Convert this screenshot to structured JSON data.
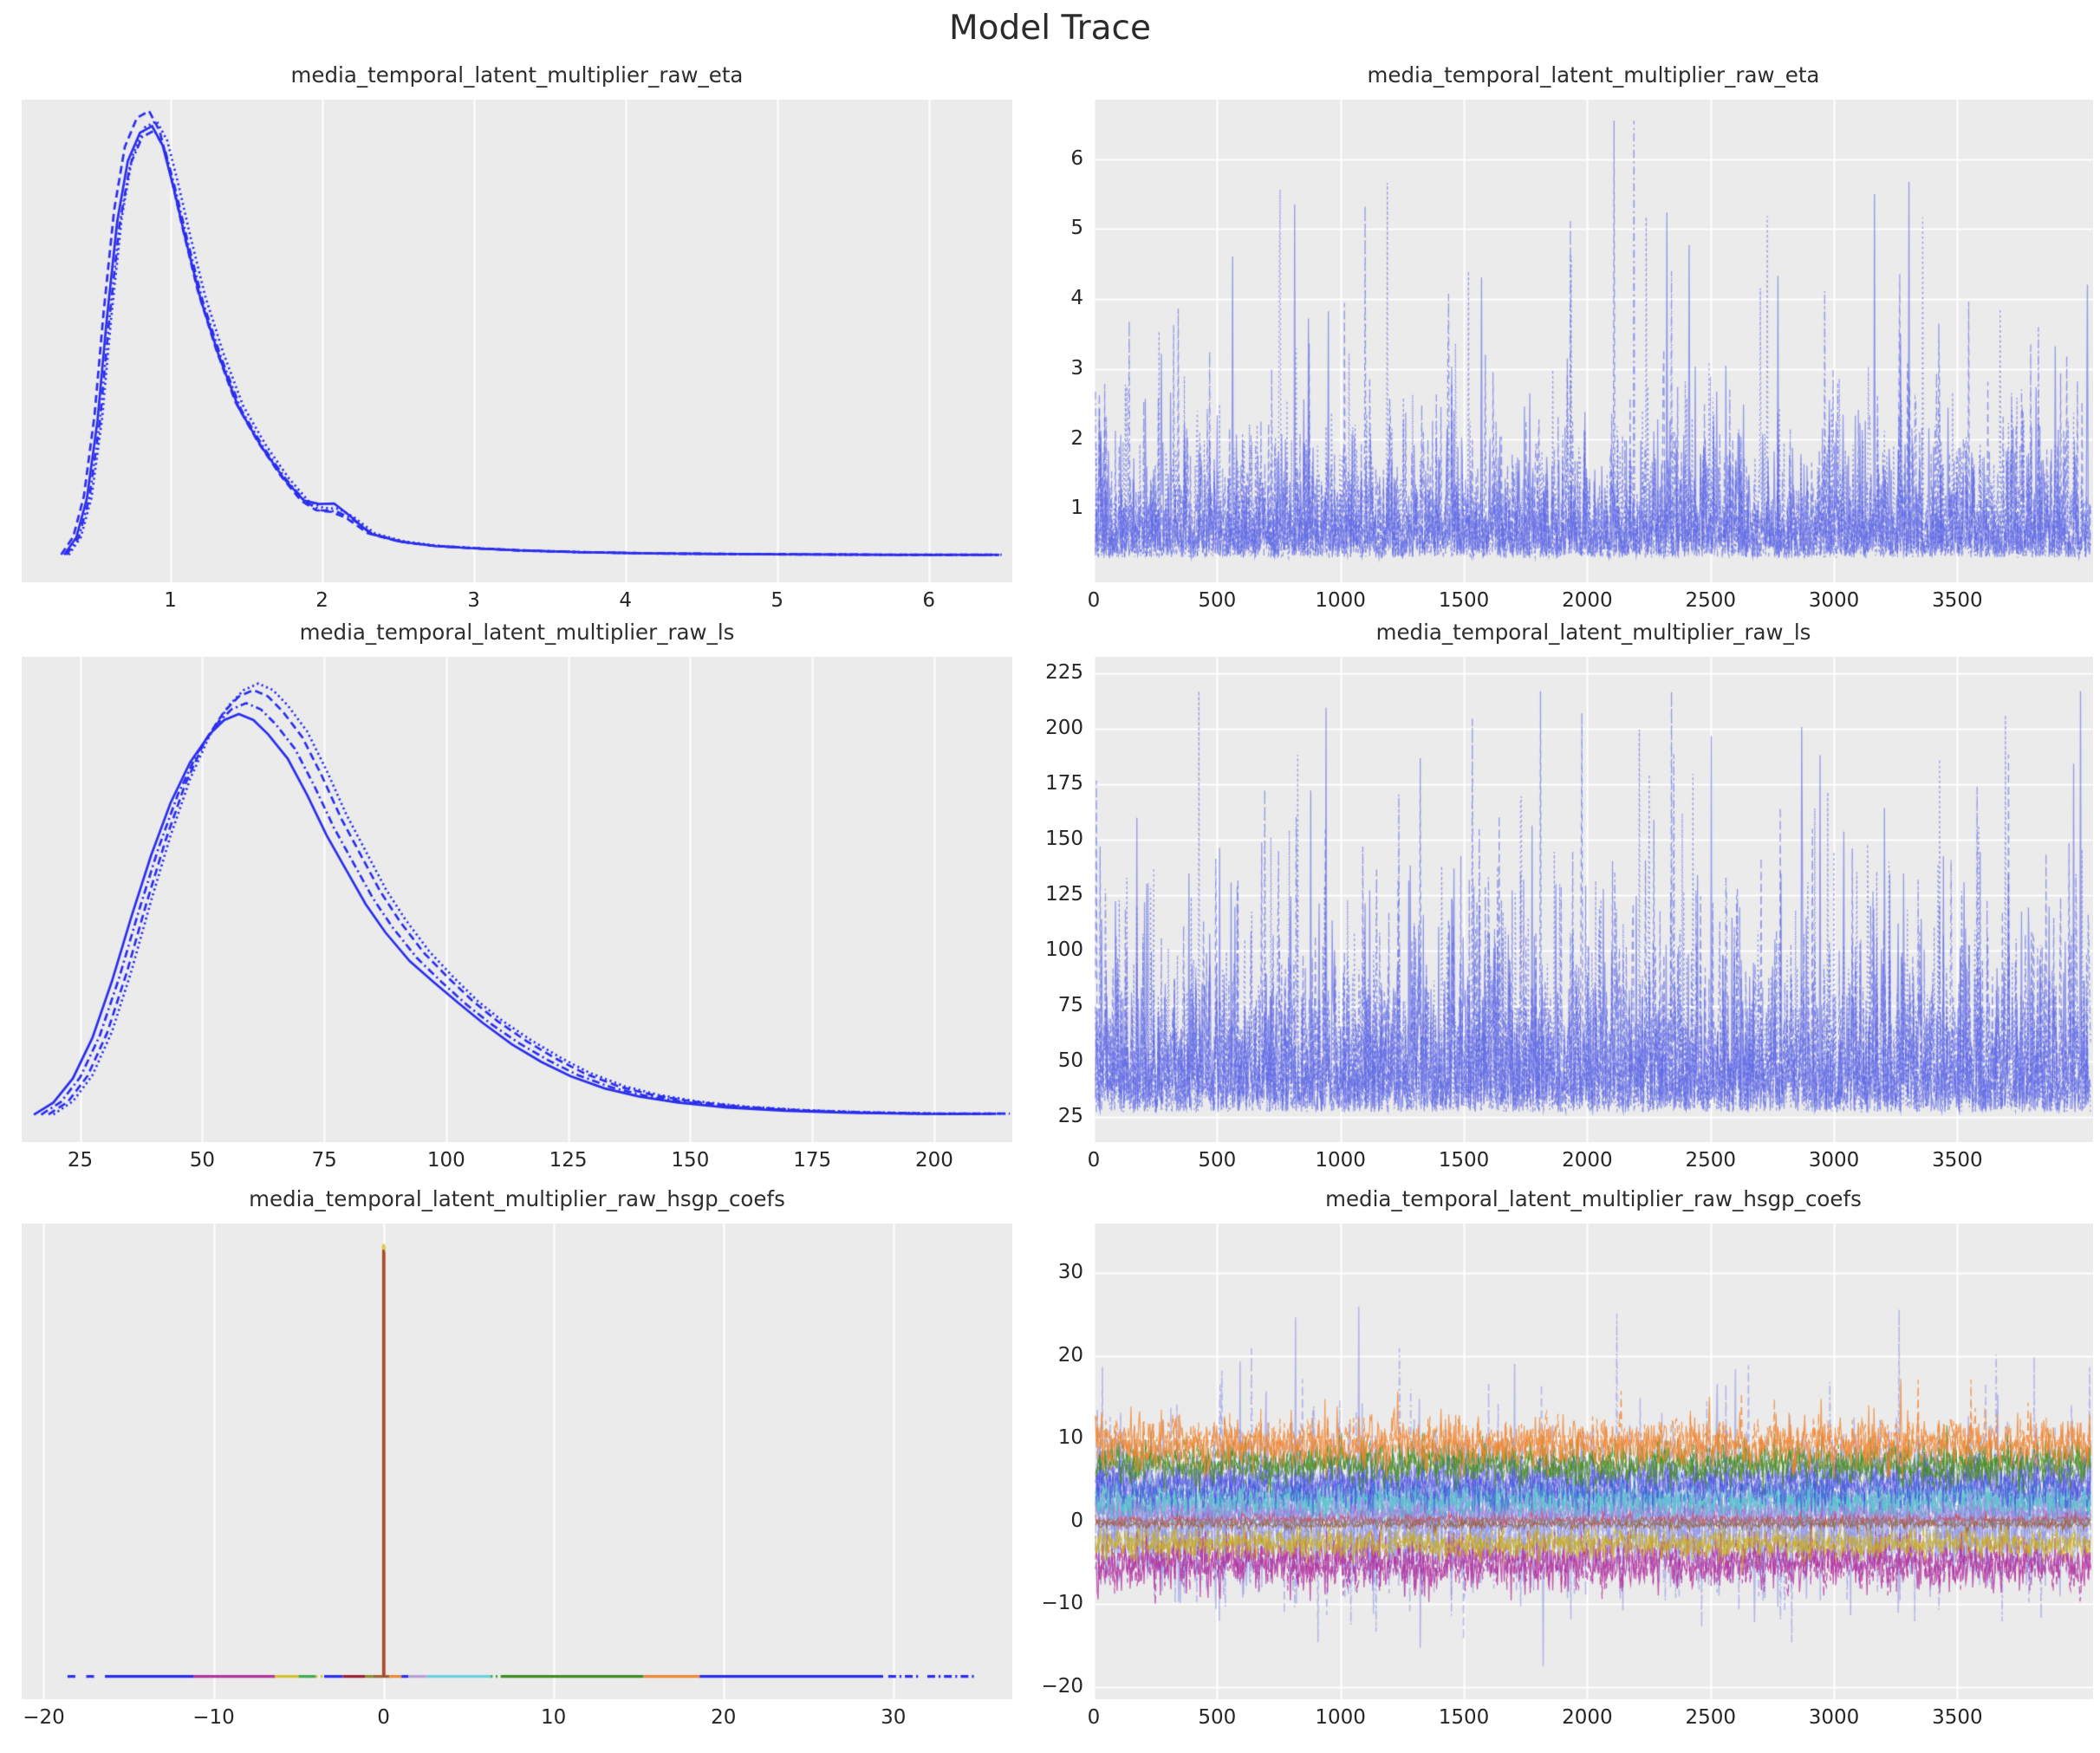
{
  "page": {
    "title": "Model Trace"
  },
  "style": {
    "figure_bg": "#ffffff",
    "axes_bg": "#ebebeb",
    "grid_color": "#ffffff",
    "tick_color": "#262626",
    "title_color": "#2d2d2d",
    "chain_color": "#2a2eec",
    "trace_blue": "#5a64e6"
  },
  "chart_data": [
    {
      "id": "eta-kde",
      "row": 0,
      "col": 0,
      "type": "kde",
      "title": "media_temporal_latent_multiplier_raw_eta",
      "xlabel": "",
      "ylabel": "density (unlabeled)",
      "grid": "vertical",
      "x_range": [
        0.02,
        6.55
      ],
      "x_ticks": [
        {
          "v": 1,
          "t": "1"
        },
        {
          "v": 2,
          "t": "2"
        },
        {
          "v": 3,
          "t": "3"
        },
        {
          "v": 4,
          "t": "4"
        },
        {
          "v": 5,
          "t": "5"
        },
        {
          "v": 6,
          "t": "6"
        }
      ],
      "chains": 4,
      "line_styles": [
        "solid",
        "dashed",
        "dashdot",
        "dotted"
      ],
      "color": "#2a2eec",
      "peak_multipliers": [
        1.0,
        1.035,
        0.99,
        1.012
      ],
      "x_shifts": [
        0,
        -0.02,
        0.015,
        0.03
      ],
      "bump": {
        "center": 2.05,
        "width": 0.13,
        "amps": [
          0.03,
          0.006,
          0.012,
          0.016
        ]
      },
      "curve": [
        [
          0.3,
          0.01
        ],
        [
          0.38,
          0.05
        ],
        [
          0.45,
          0.14
        ],
        [
          0.52,
          0.32
        ],
        [
          0.58,
          0.55
        ],
        [
          0.65,
          0.78
        ],
        [
          0.72,
          0.92
        ],
        [
          0.8,
          0.985
        ],
        [
          0.88,
          1.0
        ],
        [
          0.95,
          0.955
        ],
        [
          1.02,
          0.86
        ],
        [
          1.1,
          0.74
        ],
        [
          1.2,
          0.6
        ],
        [
          1.32,
          0.47
        ],
        [
          1.45,
          0.35
        ],
        [
          1.6,
          0.26
        ],
        [
          1.75,
          0.185
        ],
        [
          1.88,
          0.13
        ],
        [
          1.98,
          0.105
        ],
        [
          2.08,
          0.1
        ],
        [
          2.18,
          0.09
        ],
        [
          2.32,
          0.058
        ],
        [
          2.52,
          0.04
        ],
        [
          2.75,
          0.03
        ],
        [
          3.0,
          0.025
        ],
        [
          3.3,
          0.02
        ],
        [
          3.7,
          0.016
        ],
        [
          4.2,
          0.013
        ],
        [
          5.0,
          0.011
        ],
        [
          5.8,
          0.01
        ],
        [
          6.45,
          0.01
        ]
      ]
    },
    {
      "id": "eta-trace",
      "row": 0,
      "col": 1,
      "type": "trace",
      "title": "media_temporal_latent_multiplier_raw_eta",
      "grid": "both",
      "x_range": [
        0,
        4050
      ],
      "x_ticks": [
        {
          "v": 0,
          "t": "0"
        },
        {
          "v": 500,
          "t": "500"
        },
        {
          "v": 1000,
          "t": "1000"
        },
        {
          "v": 1500,
          "t": "1500"
        },
        {
          "v": 2000,
          "t": "2000"
        },
        {
          "v": 2500,
          "t": "2500"
        },
        {
          "v": 3000,
          "t": "3000"
        },
        {
          "v": 3500,
          "t": "3500"
        }
      ],
      "y_range": [
        -0.05,
        6.85
      ],
      "y_ticks": [
        {
          "v": 1,
          "t": "1"
        },
        {
          "v": 2,
          "t": "2"
        },
        {
          "v": 3,
          "t": "3"
        },
        {
          "v": 4,
          "t": "4"
        },
        {
          "v": 5,
          "t": "5"
        },
        {
          "v": 6,
          "t": "6"
        }
      ],
      "n_points": 1300,
      "series": [
        {
          "name": "eta",
          "color": "#5a64e6",
          "alpha": 0.6,
          "chains": 4,
          "lw": 1.3,
          "gen": {
            "kind": "expo",
            "base": 0.3,
            "scale": 0.52,
            "spike_p": 0.008,
            "spike_base": 1.2,
            "spike_var": 3.8,
            "clamp": [
              0.16,
              6.55
            ]
          }
        }
      ]
    },
    {
      "id": "ls-kde",
      "row": 1,
      "col": 0,
      "type": "kde",
      "title": "media_temporal_latent_multiplier_raw_ls",
      "xlabel": "",
      "ylabel": "density (unlabeled)",
      "grid": "vertical",
      "x_range": [
        13,
        216
      ],
      "x_ticks": [
        {
          "v": 25,
          "t": "25"
        },
        {
          "v": 50,
          "t": "50"
        },
        {
          "v": 75,
          "t": "75"
        },
        {
          "v": 100,
          "t": "100"
        },
        {
          "v": 125,
          "t": "125"
        },
        {
          "v": 150,
          "t": "150"
        },
        {
          "v": 175,
          "t": "175"
        },
        {
          "v": 200,
          "t": "200"
        }
      ],
      "chains": 4,
      "line_styles": [
        "solid",
        "dashed",
        "dashdot",
        "dotted"
      ],
      "color": "#2a2eec",
      "peak_multipliers": [
        0.93,
        0.985,
        0.955,
        1.0
      ],
      "x_shifts": [
        -2.5,
        0.5,
        -1.0,
        1.5
      ],
      "bump": {
        "center": 105,
        "width": 9,
        "amps": [
          0.015,
          0.004,
          0.006,
          0.0
        ]
      },
      "curve": [
        [
          18,
          0.01
        ],
        [
          22,
          0.04
        ],
        [
          26,
          0.1
        ],
        [
          30,
          0.2
        ],
        [
          34,
          0.34
        ],
        [
          38,
          0.5
        ],
        [
          42,
          0.65
        ],
        [
          46,
          0.78
        ],
        [
          50,
          0.88
        ],
        [
          54,
          0.95
        ],
        [
          57,
          0.985
        ],
        [
          60,
          1.0
        ],
        [
          63,
          0.985
        ],
        [
          66,
          0.95
        ],
        [
          70,
          0.89
        ],
        [
          74,
          0.8
        ],
        [
          78,
          0.7
        ],
        [
          82,
          0.615
        ],
        [
          86,
          0.53
        ],
        [
          90,
          0.46
        ],
        [
          95,
          0.385
        ],
        [
          100,
          0.325
        ],
        [
          105,
          0.27
        ],
        [
          110,
          0.225
        ],
        [
          116,
          0.18
        ],
        [
          122,
          0.14
        ],
        [
          128,
          0.105
        ],
        [
          135,
          0.075
        ],
        [
          142,
          0.055
        ],
        [
          150,
          0.04
        ],
        [
          160,
          0.028
        ],
        [
          172,
          0.02
        ],
        [
          185,
          0.015
        ],
        [
          200,
          0.012
        ],
        [
          214,
          0.012
        ]
      ]
    },
    {
      "id": "ls-trace",
      "row": 1,
      "col": 1,
      "type": "trace",
      "title": "media_temporal_latent_multiplier_raw_ls",
      "grid": "both",
      "x_range": [
        0,
        4050
      ],
      "x_ticks": [
        {
          "v": 0,
          "t": "0"
        },
        {
          "v": 500,
          "t": "500"
        },
        {
          "v": 1000,
          "t": "1000"
        },
        {
          "v": 1500,
          "t": "1500"
        },
        {
          "v": 2000,
          "t": "2000"
        },
        {
          "v": 2500,
          "t": "2500"
        },
        {
          "v": 3000,
          "t": "3000"
        },
        {
          "v": 3500,
          "t": "3500"
        }
      ],
      "y_range": [
        13.5,
        232.5
      ],
      "y_ticks": [
        {
          "v": 25,
          "t": "25"
        },
        {
          "v": 50,
          "t": "50"
        },
        {
          "v": 75,
          "t": "75"
        },
        {
          "v": 100,
          "t": "100"
        },
        {
          "v": 125,
          "t": "125"
        },
        {
          "v": 150,
          "t": "150"
        },
        {
          "v": 175,
          "t": "175"
        },
        {
          "v": 200,
          "t": "200"
        },
        {
          "v": 225,
          "t": "225"
        }
      ],
      "n_points": 1300,
      "series": [
        {
          "name": "ls",
          "color": "#5a64e6",
          "alpha": 0.6,
          "chains": 4,
          "lw": 1.3,
          "gen": {
            "kind": "expo",
            "base": 27,
            "scale": 25,
            "spike_p": 0.005,
            "spike_base": 55,
            "spike_var": 95,
            "clamp": [
              19,
              217
            ]
          }
        }
      ]
    },
    {
      "id": "hsgp-kde",
      "row": 2,
      "col": 0,
      "type": "kde-spike",
      "title": "media_temporal_latent_multiplier_raw_hsgp_coefs",
      "xlabel": "",
      "ylabel": "density (unlabeled)",
      "grid": "vertical",
      "x_range": [
        -21.3,
        37
      ],
      "x_ticks": [
        {
          "v": -20,
          "t": "−20"
        },
        {
          "v": -10,
          "t": "−10"
        },
        {
          "v": 0,
          "t": "0"
        },
        {
          "v": 10,
          "t": "10"
        },
        {
          "v": 20,
          "t": "20"
        },
        {
          "v": 30,
          "t": "30"
        }
      ],
      "spike": {
        "x": 0,
        "height": 0.975,
        "color": "#a0522d",
        "overlay_color": "#c0392b",
        "cap_color": "#e3cf3c"
      },
      "baseline_segments": [
        {
          "from": -18.6,
          "to": -17.9,
          "color": "#2a2eec",
          "dash": "dashed"
        },
        {
          "from": -17.5,
          "to": -16.9,
          "color": "#2a2eec",
          "dash": "dashed"
        },
        {
          "from": -16.4,
          "to": -11.2,
          "color": "#2a2eec",
          "dash": "solid"
        },
        {
          "from": -11.2,
          "to": -6.4,
          "color": "#b1339e",
          "dash": "solid"
        },
        {
          "from": -6.4,
          "to": -5.0,
          "color": "#d4c12f",
          "dash": "solid"
        },
        {
          "from": -5.0,
          "to": -4.0,
          "color": "#3faa4f",
          "dash": "solid"
        },
        {
          "from": -4.0,
          "to": -3.5,
          "color": "#d4c12f",
          "dash": "dotted"
        },
        {
          "from": -3.5,
          "to": -2.4,
          "color": "#2a2eec",
          "dash": "solid"
        },
        {
          "from": -2.4,
          "to": -1.1,
          "color": "#9b1c31",
          "dash": "solid"
        },
        {
          "from": -1.1,
          "to": -0.6,
          "color": "#8a8a2a",
          "dash": "solid"
        },
        {
          "from": -0.6,
          "to": 0.35,
          "color": "#9a5f35",
          "dash": "solid"
        },
        {
          "from": 0.35,
          "to": 1.05,
          "color": "#ef8733",
          "dash": "solid"
        },
        {
          "from": 1.05,
          "to": 1.45,
          "color": "#2a2eec",
          "dash": "solid"
        },
        {
          "from": 1.45,
          "to": 2.55,
          "color": "#b89fd8",
          "dash": "solid"
        },
        {
          "from": 2.55,
          "to": 6.3,
          "color": "#67d2dd",
          "dash": "solid"
        },
        {
          "from": 6.3,
          "to": 6.9,
          "color": "#3faa4f",
          "dash": "dotted"
        },
        {
          "from": 6.9,
          "to": 15.3,
          "color": "#3d8b20",
          "dash": "solid"
        },
        {
          "from": 15.3,
          "to": 18.6,
          "color": "#ef8733",
          "dash": "solid"
        },
        {
          "from": 18.6,
          "to": 29.4,
          "color": "#2a2eec",
          "dash": "solid"
        },
        {
          "from": 29.7,
          "to": 31.6,
          "color": "#2a2eec",
          "dash": "dashdot"
        },
        {
          "from": 32.0,
          "to": 34.8,
          "color": "#2a2eec",
          "dash": "dashdot"
        }
      ]
    },
    {
      "id": "hsgp-trace",
      "row": 2,
      "col": 1,
      "type": "trace",
      "title": "media_temporal_latent_multiplier_raw_hsgp_coefs",
      "grid": "both",
      "x_range": [
        0,
        4050
      ],
      "x_ticks": [
        {
          "v": 0,
          "t": "0"
        },
        {
          "v": 500,
          "t": "500"
        },
        {
          "v": 1000,
          "t": "1000"
        },
        {
          "v": 1500,
          "t": "1500"
        },
        {
          "v": 2000,
          "t": "2000"
        },
        {
          "v": 2500,
          "t": "2500"
        },
        {
          "v": 3000,
          "t": "3000"
        },
        {
          "v": 3500,
          "t": "3500"
        }
      ],
      "y_range": [
        -21.5,
        36
      ],
      "y_ticks": [
        {
          "v": -20,
          "t": "−20"
        },
        {
          "v": -10,
          "t": "−10"
        },
        {
          "v": 0,
          "t": "0"
        },
        {
          "v": 10,
          "t": "10"
        },
        {
          "v": 20,
          "t": "20"
        },
        {
          "v": 30,
          "t": "30"
        }
      ],
      "n_points": 1150,
      "series": [
        {
          "name": "coef-wide",
          "color": "#7b84e8",
          "alpha": 0.5,
          "chains": 3,
          "lw": 1.5,
          "gen": {
            "kind": "gauss",
            "mean": 1.2,
            "sd": 4.6,
            "spike_p": 0.022,
            "spike_base": 4,
            "spike_var": 16,
            "spike_flip": 0.38,
            "clamp": [
              -17.5,
              30.6
            ]
          }
        },
        {
          "name": "coef-magenta",
          "color": "#b12d9e",
          "alpha": 0.75,
          "chains": 2,
          "lw": 1.3,
          "gen": {
            "kind": "gauss",
            "mean": -5.1,
            "sd": 1.6,
            "spike_p": 0.008,
            "spike_base": 1.5,
            "spike_var": 3.5,
            "spike_flip": 0.8,
            "clamp": [
              -11.5,
              -1.2
            ]
          }
        },
        {
          "name": "coef-yellow",
          "color": "#c9ac1e",
          "alpha": 0.75,
          "chains": 2,
          "lw": 1.2,
          "gen": {
            "kind": "gauss",
            "mean": -2.7,
            "sd": 0.9,
            "spike_p": 0.006,
            "spike_base": 1,
            "spike_var": 2,
            "spike_flip": 0.7,
            "clamp": [
              -6.2,
              -0.6
            ]
          }
        },
        {
          "name": "coef-cyan",
          "color": "#52c7ca",
          "alpha": 0.8,
          "chains": 2,
          "lw": 1.2,
          "gen": {
            "kind": "gauss",
            "mean": 2.6,
            "sd": 1.2,
            "spike_p": 0.006,
            "spike_base": 1,
            "spike_var": 2,
            "spike_flip": 0.3,
            "clamp": [
              0.1,
              6.4
            ]
          }
        },
        {
          "name": "coef-blue",
          "color": "#3a42de",
          "alpha": 0.55,
          "chains": 2,
          "lw": 1.3,
          "gen": {
            "kind": "gauss",
            "mean": 4.6,
            "sd": 1.6,
            "spike_p": 0.007,
            "spike_base": 1.5,
            "spike_var": 3,
            "spike_flip": 0.3,
            "clamp": [
              0.6,
              9.2
            ]
          }
        },
        {
          "name": "coef-green",
          "color": "#4a8f1e",
          "alpha": 0.8,
          "chains": 2,
          "lw": 1.2,
          "gen": {
            "kind": "gauss",
            "mean": 7.0,
            "sd": 1.3,
            "spike_p": 0.006,
            "spike_base": 1.5,
            "spike_var": 3,
            "spike_flip": 0.3,
            "clamp": [
              3.4,
              11.6
            ]
          }
        },
        {
          "name": "coef-orange",
          "color": "#f08733",
          "alpha": 0.8,
          "chains": 2,
          "lw": 1.2,
          "gen": {
            "kind": "gauss",
            "mean": 9.4,
            "sd": 1.5,
            "spike_p": 0.009,
            "spike_base": 2,
            "spike_var": 5,
            "spike_flip": 0.2,
            "clamp": [
              5.2,
              17.2
            ]
          }
        },
        {
          "name": "coef-red-zero",
          "color": "#d84242",
          "alpha": 0.85,
          "chains": 1,
          "lw": 1.1,
          "gen": {
            "kind": "gauss",
            "mean": 0.2,
            "sd": 0.32,
            "spike_p": 0,
            "spike_base": 0,
            "spike_var": 0,
            "spike_flip": 0,
            "clamp": [
              -1.2,
              1.6
            ]
          }
        },
        {
          "name": "coef-brown-zero",
          "color": "#9a5f35",
          "alpha": 0.85,
          "chains": 1,
          "lw": 1.1,
          "gen": {
            "kind": "gauss",
            "mean": -0.35,
            "sd": 0.3,
            "spike_p": 0,
            "spike_base": 0,
            "spike_var": 0,
            "spike_flip": 0,
            "clamp": [
              -1.6,
              1.0
            ]
          }
        },
        {
          "name": "coef-gray-zero",
          "color": "#8a8a8a",
          "alpha": 0.85,
          "chains": 1,
          "lw": 1.0,
          "gen": {
            "kind": "gauss",
            "mean": 0.0,
            "sd": 0.22,
            "spike_p": 0,
            "spike_base": 0,
            "spike_var": 0,
            "spike_flip": 0,
            "clamp": [
              -1.0,
              1.0
            ]
          }
        },
        {
          "name": "coef-purple",
          "color": "#9b75d2",
          "alpha": 0.6,
          "chains": 1,
          "lw": 1.1,
          "gen": {
            "kind": "gauss",
            "mean": 0.9,
            "sd": 0.6,
            "spike_p": 0,
            "spike_base": 0,
            "spike_var": 0,
            "spike_flip": 0,
            "clamp": [
              -0.8,
              2.8
            ]
          }
        }
      ]
    }
  ]
}
